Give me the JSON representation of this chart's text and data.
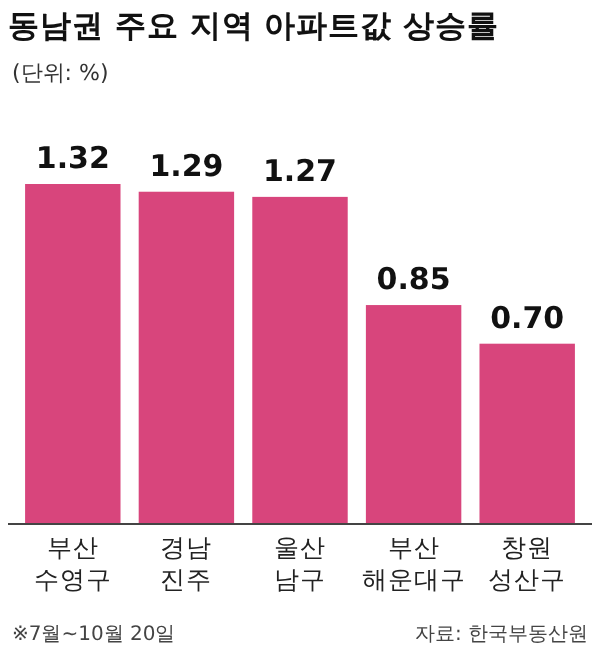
{
  "chart_data": {
    "type": "bar",
    "title": "동남권 주요 지역 아파트값 상승률",
    "subtitle": "(단위: %)",
    "categories": [
      "부산 수영구",
      "경남 진주",
      "울산 남구",
      "부산 해운대구",
      "창원 성산구"
    ],
    "values": [
      1.32,
      1.29,
      1.27,
      0.85,
      0.7
    ],
    "value_labels": [
      "1.32",
      "1.29",
      "1.27",
      "0.85",
      "0.70"
    ],
    "color": "#d8457c",
    "annotations": [
      "※7월~10월 20일",
      "자료: 한국부동산원"
    ]
  }
}
